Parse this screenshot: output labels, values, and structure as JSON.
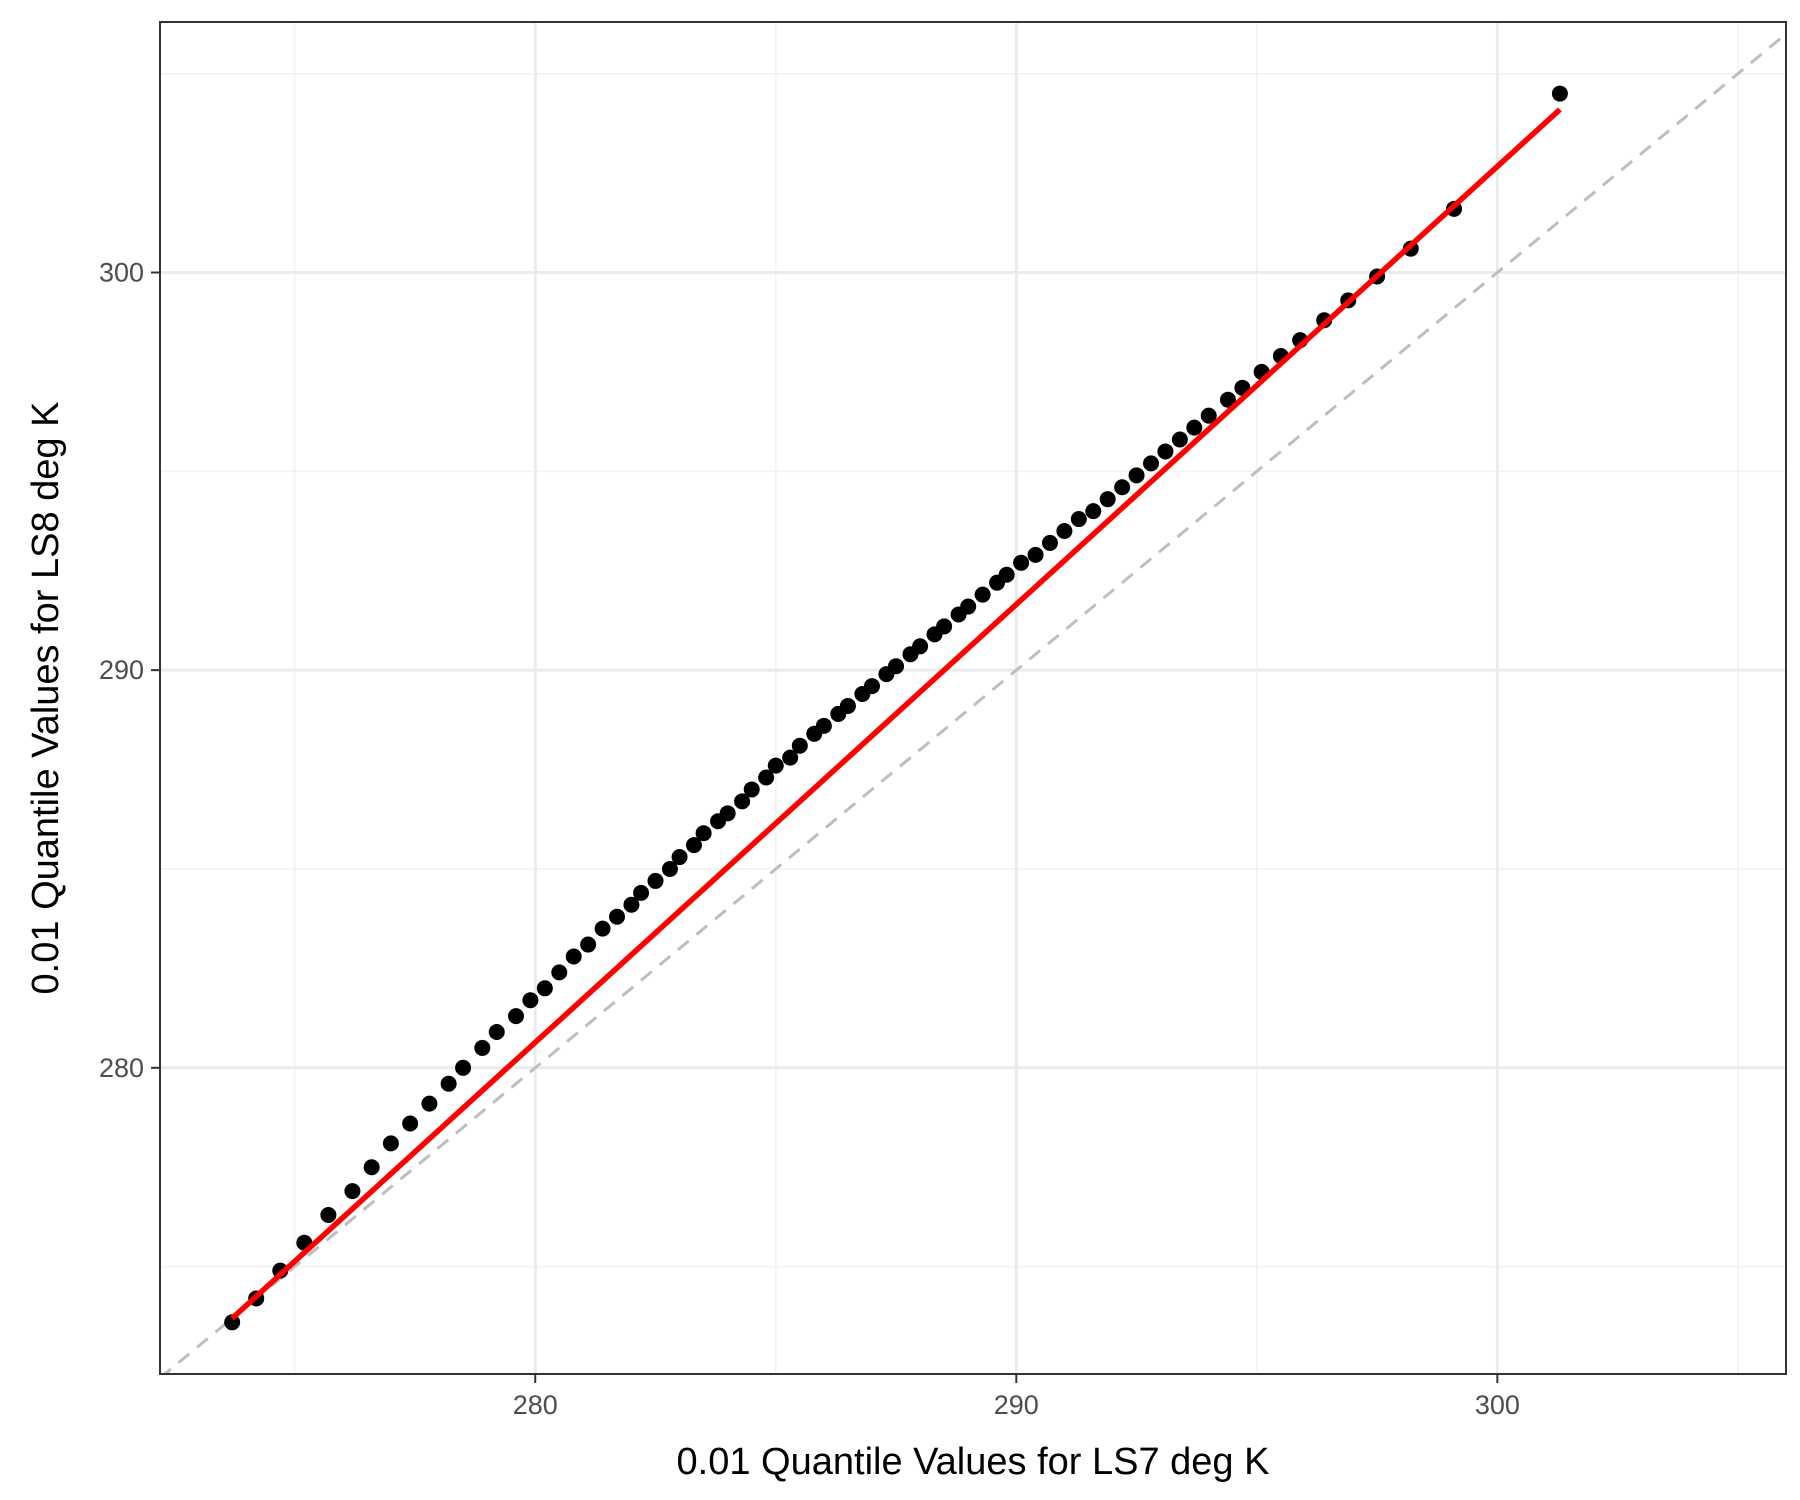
{
  "chart_data": {
    "type": "scatter",
    "title": "",
    "xlabel": "0.01 Quantile Values for LS7 deg K",
    "ylabel": "0.01 Quantile Values for LS8 deg K",
    "xlim": [
      272.2,
      306.0
    ],
    "ylim": [
      272.3,
      306.3
    ],
    "x_ticks": [
      280,
      290,
      300
    ],
    "y_ticks": [
      280,
      290,
      300
    ],
    "x_tick_labels": [
      "280",
      "290",
      "300"
    ],
    "y_tick_labels": [
      "280",
      "290",
      "300"
    ],
    "grid": true,
    "theme": "black-and-white panel with light grey gridlines",
    "points": {
      "color": "#000000",
      "x": [
        273.7,
        274.2,
        274.7,
        275.2,
        275.7,
        276.2,
        276.6,
        277.0,
        277.4,
        277.8,
        278.2,
        278.5,
        278.9,
        279.2,
        279.6,
        279.9,
        280.2,
        280.5,
        280.8,
        281.1,
        281.4,
        281.7,
        282.0,
        282.2,
        282.5,
        282.8,
        283.0,
        283.3,
        283.5,
        283.8,
        284.0,
        284.3,
        284.5,
        284.8,
        285.0,
        285.3,
        285.5,
        285.8,
        286.0,
        286.3,
        286.5,
        286.8,
        287.0,
        287.3,
        287.5,
        287.8,
        288.0,
        288.3,
        288.5,
        288.8,
        289.0,
        289.3,
        289.6,
        289.8,
        290.1,
        290.4,
        290.7,
        291.0,
        291.3,
        291.6,
        291.9,
        292.2,
        292.5,
        292.8,
        293.1,
        293.4,
        293.7,
        294.0,
        294.4,
        294.7,
        295.1,
        295.5,
        295.9,
        296.4,
        296.9,
        297.5,
        298.2,
        299.1,
        301.3
      ],
      "y": [
        273.6,
        274.2,
        274.9,
        275.6,
        276.3,
        276.9,
        277.5,
        278.1,
        278.6,
        279.1,
        279.6,
        280.0,
        280.5,
        280.9,
        281.3,
        281.7,
        282.0,
        282.4,
        282.8,
        283.1,
        283.5,
        283.8,
        284.1,
        284.4,
        284.7,
        285.0,
        285.3,
        285.6,
        285.9,
        286.2,
        286.4,
        286.7,
        287.0,
        287.3,
        287.6,
        287.8,
        288.1,
        288.4,
        288.6,
        288.9,
        289.1,
        289.4,
        289.6,
        289.9,
        290.1,
        290.4,
        290.6,
        290.9,
        291.1,
        291.4,
        291.6,
        291.9,
        292.2,
        292.4,
        292.7,
        292.9,
        293.2,
        293.5,
        293.8,
        294.0,
        294.3,
        294.6,
        294.9,
        295.2,
        295.5,
        295.8,
        296.1,
        296.4,
        296.8,
        297.1,
        297.5,
        297.9,
        298.3,
        298.8,
        299.3,
        299.9,
        300.6,
        301.6,
        304.5
      ]
    },
    "fit_line": {
      "color": "#ff0000",
      "x": [
        273.7,
        301.3
      ],
      "y": [
        273.7,
        304.1
      ]
    },
    "reference_line": {
      "color": "#bebebe",
      "style": "dashed",
      "x": [
        272.2,
        306.0
      ],
      "y": [
        272.2,
        306.0
      ]
    }
  }
}
